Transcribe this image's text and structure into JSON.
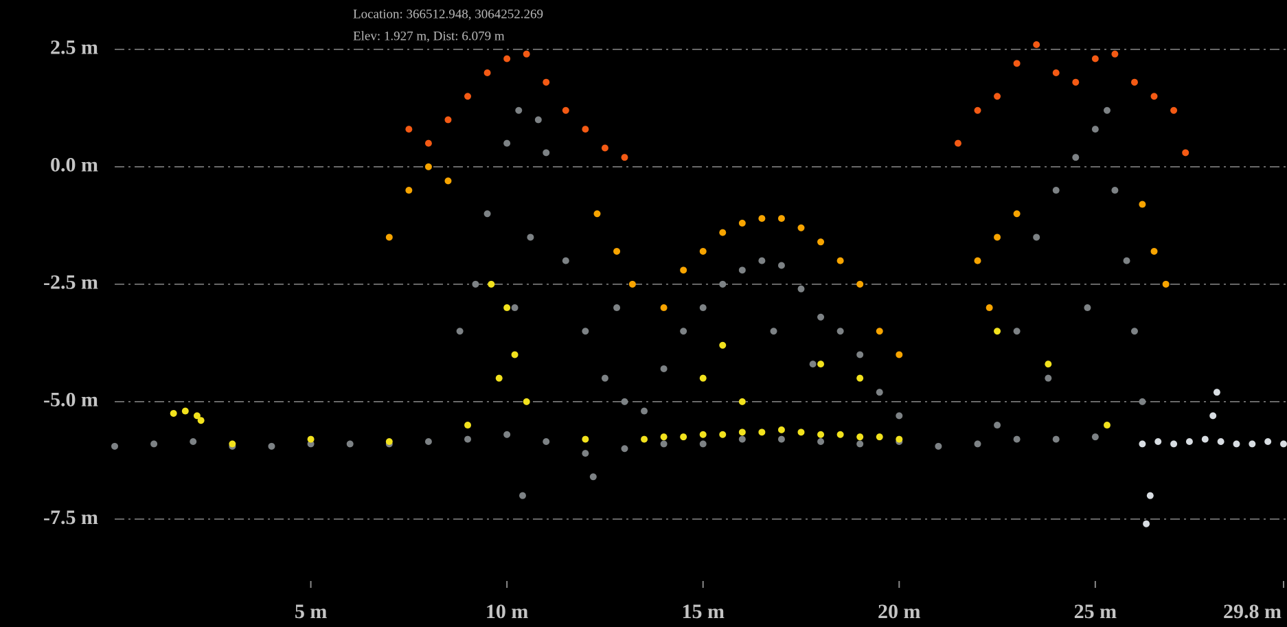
{
  "chart_data": {
    "type": "scatter",
    "annotations": [
      "Location: 366512.948, 3064252.269",
      "Elev: 1.927 m, Dist: 6.079 m"
    ],
    "xlim": [
      0,
      29.8
    ],
    "ylim": [
      -8.92,
      3.55
    ],
    "xticks": [
      {
        "value": 5,
        "label": "5 m"
      },
      {
        "value": 10,
        "label": "10 m"
      },
      {
        "value": 15,
        "label": "15 m"
      },
      {
        "value": 20,
        "label": "20 m"
      },
      {
        "value": 25,
        "label": "25 m"
      },
      {
        "value": 29.8,
        "label": "29.8 m"
      }
    ],
    "yticks": [
      {
        "value": 2.5,
        "label": "2.5 m"
      },
      {
        "value": 0,
        "label": "0.0 m"
      },
      {
        "value": -2.5,
        "label": "-2.5 m"
      },
      {
        "value": -5,
        "label": "-5.0 m"
      },
      {
        "value": -7.5,
        "label": "-7.5 m"
      }
    ],
    "grid": true,
    "series": [
      {
        "color": "#7d8285",
        "x": [
          0,
          1,
          2,
          3,
          4,
          5,
          6,
          7,
          8,
          9,
          10,
          11,
          12,
          13,
          14,
          15,
          16,
          17,
          18,
          19,
          20,
          21,
          22,
          23,
          24,
          25,
          9.5,
          10,
          10.3,
          10.8,
          11,
          10.6,
          10.2,
          11.5,
          12,
          12.5,
          13,
          12.8,
          9.2,
          8.8,
          13.5,
          14,
          14.5,
          15,
          15.5,
          16,
          16.5,
          17,
          17.5,
          18,
          18.5,
          19,
          19.5,
          20,
          16.8,
          17.8,
          22.5,
          23,
          23.5,
          24,
          24.5,
          25,
          25.3,
          25.5,
          25.8,
          26,
          26.2,
          24.8,
          23.8,
          10.4,
          12.2
        ],
        "values": [
          -5.95,
          -5.9,
          -5.85,
          -5.95,
          -5.95,
          -5.9,
          -5.9,
          -5.9,
          -5.85,
          -5.8,
          -5.7,
          -5.85,
          -6.1,
          -6.0,
          -5.9,
          -5.9,
          -5.8,
          -5.8,
          -5.85,
          -5.9,
          -5.85,
          -5.95,
          -5.9,
          -5.8,
          -5.8,
          -5.75,
          -1,
          0.5,
          1.2,
          1.0,
          0.3,
          -1.5,
          -3,
          -2,
          -3.5,
          -4.5,
          -5,
          -3,
          -2.5,
          -3.5,
          -5.2,
          -4.3,
          -3.5,
          -3,
          -2.5,
          -2.2,
          -2,
          -2.1,
          -2.6,
          -3.2,
          -3.5,
          -4,
          -4.8,
          -5.3,
          -3.5,
          -4.2,
          -5.5,
          -3.5,
          -1.5,
          -0.5,
          0.2,
          0.8,
          1.2,
          -0.5,
          -2,
          -3.5,
          -5,
          -3,
          -4.5,
          -7,
          -6.6
        ]
      },
      {
        "color": "#d8dde2",
        "x": [
          26.2,
          26.6,
          27,
          27.4,
          27.8,
          28,
          28.2,
          28.6,
          29,
          29.4,
          29.8,
          28.1,
          26.3,
          26.4
        ],
        "values": [
          -5.9,
          -5.85,
          -5.9,
          -5.85,
          -5.8,
          -5.3,
          -5.85,
          -5.9,
          -5.9,
          -5.85,
          -5.9,
          -4.8,
          -7.6,
          -7.0
        ]
      },
      {
        "color": "#f2e21d",
        "x": [
          13.5,
          14,
          14.5,
          15,
          15.5,
          16,
          16.5,
          17,
          17.5,
          18,
          18.5,
          19,
          19.5,
          20,
          1.5,
          1.8,
          2.1,
          2.2,
          10,
          10.2,
          9.8,
          10.5,
          9.6,
          15,
          16,
          18,
          19,
          15.5,
          23.8,
          22.5,
          25.3,
          3,
          5,
          7,
          9,
          12
        ],
        "values": [
          -5.8,
          -5.75,
          -5.75,
          -5.7,
          -5.7,
          -5.65,
          -5.65,
          -5.6,
          -5.65,
          -5.7,
          -5.7,
          -5.75,
          -5.75,
          -5.8,
          -5.25,
          -5.2,
          -5.3,
          -5.4,
          -3,
          -4,
          -4.5,
          -5,
          -2.5,
          -4.5,
          -5,
          -4.2,
          -4.5,
          -3.8,
          -4.2,
          -3.5,
          -5.5,
          -5.9,
          -5.8,
          -5.85,
          -5.5,
          -5.8
        ]
      },
      {
        "color": "#f7a400",
        "x": [
          14,
          14.5,
          15,
          15.5,
          16,
          16.5,
          17,
          17.5,
          18,
          18.5,
          19,
          19.5,
          20,
          7,
          7.5,
          8,
          8.5,
          12.3,
          12.8,
          13.2,
          22,
          22.5,
          23,
          26.2,
          26.5,
          26.8,
          22.3
        ],
        "values": [
          -3,
          -2.2,
          -1.8,
          -1.4,
          -1.2,
          -1.1,
          -1.1,
          -1.3,
          -1.6,
          -2,
          -2.5,
          -3.5,
          -4,
          -1.5,
          -0.5,
          0,
          -0.3,
          -1,
          -1.8,
          -2.5,
          -2,
          -1.5,
          -1,
          -0.8,
          -1.8,
          -2.5,
          -3
        ]
      },
      {
        "color": "#f45a14",
        "x": [
          8,
          8.5,
          9,
          9.5,
          10,
          10.5,
          11,
          11.5,
          12,
          12.5,
          13,
          7.5,
          21.5,
          22,
          22.5,
          23,
          23.5,
          24,
          24.5,
          25,
          25.5,
          26,
          26.5,
          27,
          27.3
        ],
        "values": [
          0.5,
          1,
          1.5,
          2,
          2.3,
          2.4,
          1.8,
          1.2,
          0.8,
          0.4,
          0.2,
          0.8,
          0.5,
          1.2,
          1.5,
          2.2,
          2.6,
          2,
          1.8,
          2.3,
          2.4,
          1.8,
          1.5,
          1.2,
          0.3
        ]
      }
    ]
  }
}
